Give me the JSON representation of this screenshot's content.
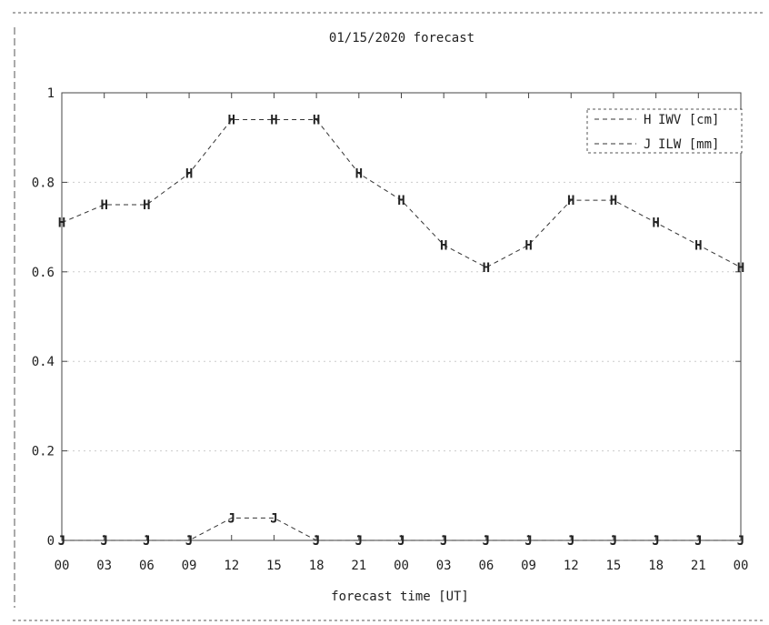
{
  "chart_data": {
    "type": "line",
    "title": "01/15/2020 forecast",
    "xlabel": "forecast time [UT]",
    "ylabel": "",
    "x_ticks": [
      "00",
      "03",
      "06",
      "09",
      "12",
      "15",
      "18",
      "21",
      "00",
      "03",
      "06",
      "09",
      "12",
      "15",
      "18",
      "21",
      "00"
    ],
    "x": [
      0,
      3,
      6,
      9,
      12,
      15,
      18,
      21,
      24,
      27,
      30,
      33,
      36,
      39,
      42,
      45,
      48
    ],
    "xlim": [
      0,
      48
    ],
    "y_ticks": [
      "0",
      "0.2",
      "0.4",
      "0.6",
      "0.8",
      "1"
    ],
    "ylim": [
      0,
      1
    ],
    "legend_position": "top-right",
    "series": [
      {
        "name": "IWV [cm]",
        "marker": "H",
        "values": [
          0.71,
          0.75,
          0.75,
          0.82,
          0.94,
          0.94,
          0.94,
          0.82,
          0.76,
          0.66,
          0.61,
          0.66,
          0.76,
          0.76,
          0.71,
          0.66,
          0.61
        ]
      },
      {
        "name": "ILW [mm]",
        "marker": "J",
        "values": [
          0.0,
          0.0,
          0.0,
          0.0,
          0.05,
          0.05,
          0.0,
          0.0,
          0.0,
          0.0,
          0.0,
          0.0,
          0.0,
          0.0,
          0.0,
          0.0,
          0.0
        ]
      }
    ]
  }
}
